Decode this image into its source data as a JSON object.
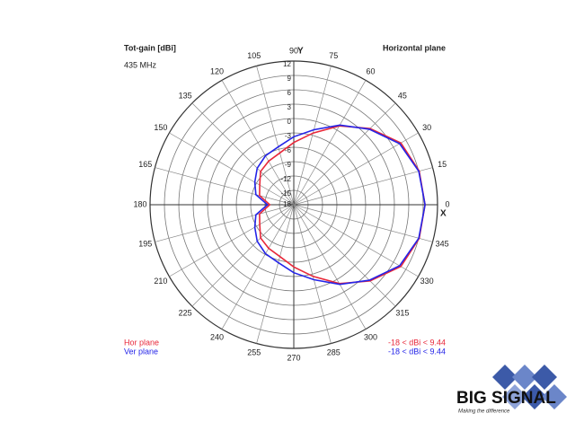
{
  "chart_data": {
    "type": "polar",
    "title": "Tot-gain [dBi]",
    "subtitle": "435 MHz",
    "plane_label": "Horizontal plane",
    "x_axis_label": "X",
    "y_axis_label": "Y",
    "rlim": [
      -18,
      12
    ],
    "rticks": [
      -18,
      -15,
      -12,
      -9,
      -6,
      -3,
      0,
      3,
      6,
      9,
      12
    ],
    "thetaticks": [
      0,
      15,
      30,
      45,
      60,
      75,
      90,
      105,
      120,
      135,
      150,
      165,
      180,
      195,
      210,
      225,
      240,
      255,
      270,
      285,
      300,
      315,
      330,
      345
    ],
    "theta": [
      0,
      15,
      30,
      45,
      60,
      75,
      90,
      105,
      120,
      135,
      150,
      165,
      180,
      195,
      210,
      225,
      240,
      255,
      270,
      285,
      300,
      315,
      330,
      345
    ],
    "series": [
      {
        "name": "Hor plane",
        "color": "#e8283a",
        "range_label": "-18 < dBi < 9.44",
        "values": [
          9.4,
          9.1,
          7.8,
          4.5,
          1.0,
          -2.5,
          -5.0,
          -6.8,
          -7.5,
          -8.2,
          -9.8,
          -10.6,
          -13,
          -10.6,
          -9.8,
          -8.2,
          -7.5,
          -6.8,
          -5.0,
          -2.5,
          1.0,
          4.5,
          7.8,
          9.1
        ]
      },
      {
        "name": "Ver plane",
        "color": "#2424e8",
        "range_label": "-18 < dBi < 9.44",
        "values": [
          9.4,
          9.0,
          7.5,
          4.3,
          1.2,
          -1.8,
          -3.8,
          -5.5,
          -6.2,
          -7.2,
          -8.6,
          -9.8,
          -12.5,
          -9.8,
          -8.6,
          -7.2,
          -6.2,
          -5.5,
          -3.8,
          -1.8,
          1.2,
          4.3,
          7.5,
          9.0
        ]
      }
    ]
  },
  "logo": {
    "name": "BIG SIGNAL",
    "tagline": "Making the difference"
  }
}
